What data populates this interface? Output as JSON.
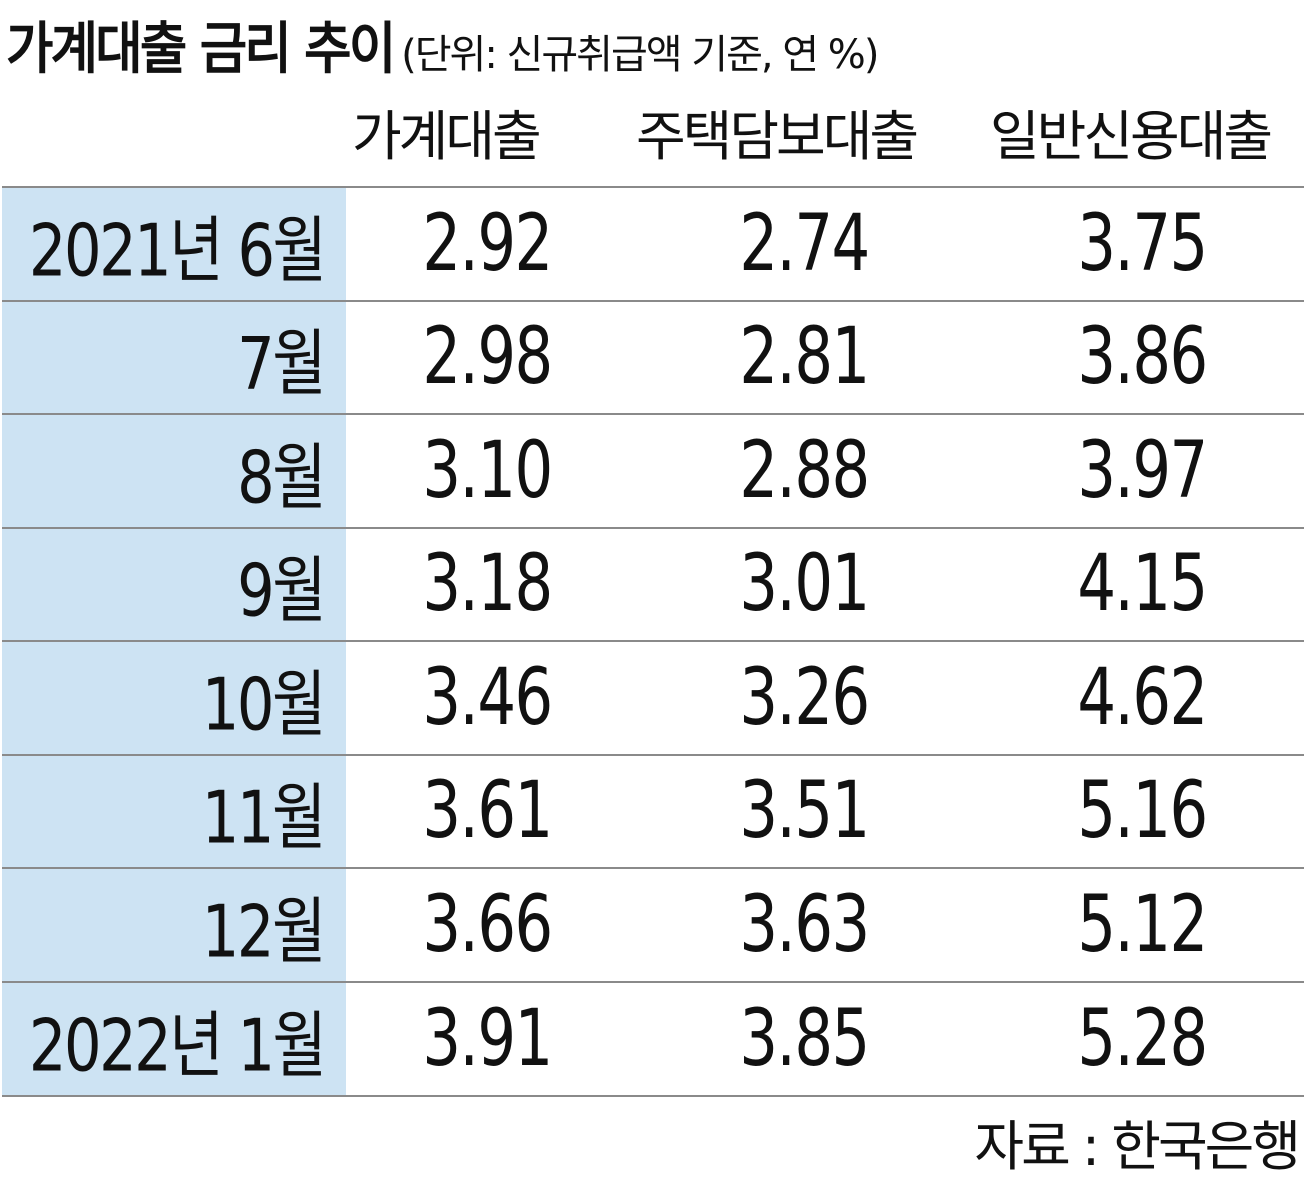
{
  "chart_data": {
    "type": "table",
    "title": "가계대출 금리 추이",
    "unit_note": "(단위: 신규취급액 기준, 연 %)",
    "columns": [
      "가계대출",
      "주택담보대출",
      "일반신용대출"
    ],
    "rows": [
      {
        "label": "2021년 6월",
        "values": [
          "2.92",
          "2.74",
          "3.75"
        ]
      },
      {
        "label": "7월",
        "values": [
          "2.98",
          "2.81",
          "3.86"
        ]
      },
      {
        "label": "8월",
        "values": [
          "3.10",
          "2.88",
          "3.97"
        ]
      },
      {
        "label": "9월",
        "values": [
          "3.18",
          "3.01",
          "4.15"
        ]
      },
      {
        "label": "10월",
        "values": [
          "3.46",
          "3.26",
          "4.62"
        ]
      },
      {
        "label": "11월",
        "values": [
          "3.61",
          "3.51",
          "5.16"
        ]
      },
      {
        "label": "12월",
        "values": [
          "3.66",
          "3.63",
          "5.12"
        ]
      },
      {
        "label": "2022년 1월",
        "values": [
          "3.91",
          "3.85",
          "5.28"
        ]
      }
    ],
    "source": "자료 : 한국은행"
  },
  "colors": {
    "label_column_bg": "#cde3f3",
    "row_divider": "#8a8a8a",
    "text": "#111111"
  }
}
